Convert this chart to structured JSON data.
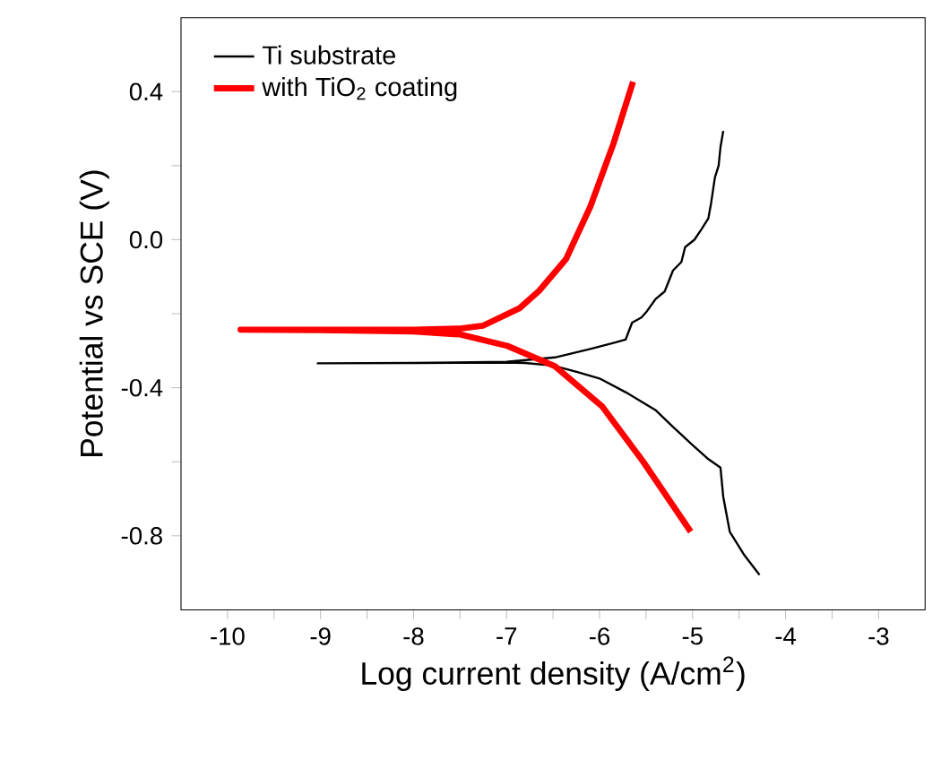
{
  "chart_data": {
    "type": "line",
    "xlabel": "Log current density (A/cm$^{2}$)",
    "ylabel": "Potential vs SCE (V)",
    "xlim": [
      -10.5,
      -2.5
    ],
    "ylim": [
      -1.0,
      0.6
    ],
    "xticks": [
      -10,
      {
        "value": -9.5,
        "label": null
      },
      -9,
      {
        "value": -8.5,
        "label": null
      },
      -8,
      {
        "value": -7.5,
        "label": null
      },
      -7,
      {
        "value": -6.5,
        "label": null
      },
      -6,
      {
        "value": -5.5,
        "label": null
      },
      -5,
      {
        "value": -4.5,
        "label": null
      },
      -4,
      {
        "value": -3.5,
        "label": null
      },
      -3
    ],
    "yticks": [
      {
        "value": -0.8,
        "label": "-0.8"
      },
      {
        "value": -0.6,
        "label": null
      },
      {
        "value": -0.4,
        "label": "-0.4"
      },
      {
        "value": -0.2,
        "label": null
      },
      {
        "value": 0.0,
        "label": "0.0"
      },
      {
        "value": 0.2,
        "label": null
      },
      {
        "value": 0.4,
        "label": "0.4"
      }
    ],
    "legend": "top left",
    "grid": false,
    "marker": "none",
    "line_style": "solid",
    "series": [
      {
        "name": "Ti substrate",
        "color": "#000000",
        "x": [
          -4.28,
          -4.45,
          -4.6,
          -4.67,
          -4.7,
          -4.83,
          -5.0,
          -5.21,
          -5.4,
          -5.72,
          -6.0,
          -6.23,
          -6.5,
          -6.8,
          -7.0,
          -8.0,
          -9.03,
          -8.0,
          -7.0,
          -6.48,
          -6.1,
          -5.85,
          -5.72,
          -5.65,
          -5.55,
          -5.49,
          -5.4,
          -5.3,
          -5.21,
          -5.12,
          -5.08,
          -4.98,
          -4.9,
          -4.83,
          -4.8,
          -4.76,
          -4.72,
          -4.7,
          -4.67
        ],
        "values": [
          -0.906,
          -0.85,
          -0.789,
          -0.695,
          -0.616,
          -0.593,
          -0.555,
          -0.506,
          -0.46,
          -0.412,
          -0.375,
          -0.358,
          -0.34,
          -0.333,
          -0.332,
          -0.333,
          -0.334,
          -0.333,
          -0.33,
          -0.318,
          -0.295,
          -0.279,
          -0.27,
          -0.224,
          -0.21,
          -0.193,
          -0.161,
          -0.14,
          -0.083,
          -0.06,
          -0.02,
          0.0,
          0.03,
          0.058,
          0.1,
          0.168,
          0.2,
          0.25,
          0.294
        ]
      },
      {
        "name": "with TiO$_{2}$ coating",
        "color": "#ff0000",
        "x": [
          -5.02,
          -5.53,
          -5.97,
          -6.48,
          -6.99,
          -7.5,
          -8.0,
          -9.0,
          -9.86,
          -9.0,
          -8.0,
          -7.5,
          -7.25,
          -6.86,
          -6.65,
          -6.36,
          -6.1,
          -5.85,
          -5.64
        ],
        "values": [
          -0.789,
          -0.6,
          -0.451,
          -0.342,
          -0.287,
          -0.256,
          -0.248,
          -0.244,
          -0.243,
          -0.243,
          -0.243,
          -0.24,
          -0.232,
          -0.185,
          -0.138,
          -0.052,
          0.089,
          0.26,
          0.427
        ]
      }
    ]
  }
}
